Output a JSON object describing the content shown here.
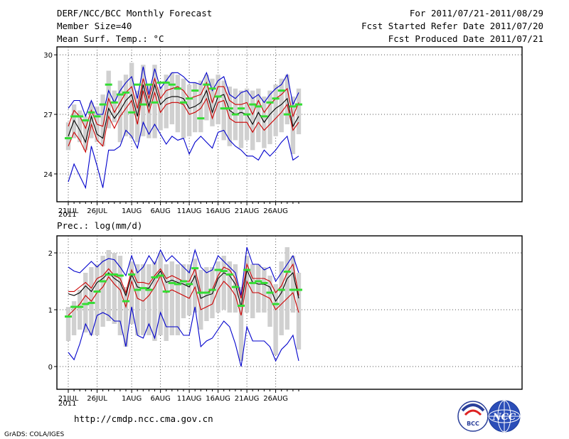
{
  "header": {
    "title": "DERF/NCC/BCC Monthly Forecast",
    "member_size": "Member Size=40",
    "variable": "Mean Surf. Temp.: °C",
    "period": "For 2011/07/21-2011/08/29",
    "started": "Fcst Started Refer Date 2011/07/20",
    "produced": "Fcst Produced Date 2011/07/21"
  },
  "footer": {
    "url": "http://cmdp.ncc.cma.gov.cn",
    "credit": "GrADS: COLA/IGES",
    "logo_left": "BCC",
    "logo_right": "NCC"
  },
  "colors": {
    "blue": "#0000cc",
    "red": "#cc0000",
    "black": "#000000",
    "green": "#33dd33",
    "bar": "#d0d0d0"
  },
  "chart_data": [
    {
      "type": "line",
      "title": "Mean Surf. Temp.: °C",
      "xlabel": "",
      "ylabel": "",
      "ylim": [
        22.6,
        30.4
      ],
      "yticks": [
        24,
        27,
        30
      ],
      "x_start_day": 21,
      "xtick_labels": [
        "21JUL",
        "26JUL",
        "1AUG",
        "6AUG",
        "11AUG",
        "16AUG",
        "21AUG",
        "26AUG"
      ],
      "xtick_index": [
        0,
        5,
        11,
        16,
        21,
        26,
        31,
        36
      ],
      "year_label": "2011",
      "series": [
        {
          "name": "max",
          "color": "#0000cc",
          "values": [
            27.3,
            27.7,
            27.7,
            26.9,
            27.7,
            27.0,
            27.0,
            28.2,
            27.6,
            28.2,
            28.6,
            28.9,
            27.8,
            29.4,
            28.0,
            29.3,
            28.3,
            28.7,
            29.1,
            29.1,
            28.9,
            28.6,
            28.6,
            28.5,
            29.1,
            28.2,
            28.7,
            28.9,
            28.0,
            27.8,
            28.1,
            28.2,
            27.8,
            28.0,
            27.6,
            28.0,
            28.3,
            28.5,
            29.0,
            27.5,
            28.1
          ]
        },
        {
          "name": "upper",
          "color": "#cc0000",
          "values": [
            26.4,
            27.2,
            26.9,
            26.3,
            27.2,
            26.5,
            26.4,
            27.8,
            27.1,
            27.6,
            28.1,
            28.4,
            27.3,
            28.8,
            27.8,
            28.8,
            27.8,
            28.2,
            28.3,
            28.4,
            28.2,
            27.8,
            27.9,
            28.0,
            28.6,
            27.6,
            28.4,
            28.4,
            27.7,
            27.5,
            27.5,
            27.6,
            27.0,
            27.7,
            27.1,
            27.5,
            27.8,
            28.0,
            28.3,
            26.9,
            27.6
          ]
        },
        {
          "name": "mean",
          "color": "#000000",
          "values": [
            25.9,
            26.7,
            26.2,
            25.6,
            26.9,
            26.0,
            25.8,
            27.3,
            26.8,
            27.2,
            27.7,
            28.0,
            26.9,
            28.5,
            27.4,
            28.5,
            27.5,
            27.8,
            27.9,
            27.9,
            27.8,
            27.3,
            27.4,
            27.6,
            28.2,
            27.1,
            27.9,
            28.0,
            27.2,
            27.0,
            27.1,
            27.0,
            26.5,
            27.1,
            26.6,
            27.0,
            27.3,
            27.5,
            27.8,
            26.4,
            26.9
          ]
        },
        {
          "name": "lower",
          "color": "#cc0000",
          "values": [
            25.4,
            26.1,
            25.7,
            25.1,
            26.5,
            25.7,
            25.4,
            26.9,
            26.3,
            26.9,
            27.3,
            27.7,
            26.5,
            28.2,
            27.1,
            28.1,
            27.1,
            27.5,
            27.6,
            27.6,
            27.5,
            27.0,
            27.1,
            27.3,
            27.8,
            26.8,
            27.6,
            27.7,
            26.8,
            26.6,
            26.6,
            26.6,
            26.1,
            26.6,
            26.2,
            26.5,
            26.8,
            27.1,
            27.5,
            26.2,
            26.6
          ]
        },
        {
          "name": "min",
          "color": "#0000cc",
          "values": [
            23.6,
            24.5,
            23.9,
            23.3,
            25.4,
            24.4,
            23.3,
            25.2,
            25.2,
            25.4,
            26.2,
            25.9,
            25.3,
            26.6,
            26.0,
            26.5,
            26.0,
            25.5,
            25.9,
            25.7,
            25.8,
            25.0,
            25.6,
            25.9,
            25.6,
            25.3,
            26.1,
            26.2,
            25.7,
            25.4,
            25.2,
            24.9,
            24.9,
            24.7,
            25.2,
            24.9,
            25.2,
            25.6,
            25.9,
            24.7,
            24.9
          ]
        }
      ],
      "obs": [
        25.8,
        26.9,
        26.9,
        26.7,
        27.1,
        26.9,
        27.5,
        28.5,
        27.6,
        28.0,
        28.1,
        27.1,
        28.5,
        27.5,
        28.5,
        27.6,
        28.6,
        28.6,
        28.5,
        28.3,
        27.6,
        27.8,
        28.2,
        26.8,
        28.5,
        28.3,
        27.9,
        27.3,
        27.3,
        27.0,
        27.3,
        27.0,
        27.5,
        27.4,
        26.9,
        27.6,
        27.8,
        28.2,
        27.0,
        27.4,
        27.5
      ],
      "box_low": [
        25.2,
        25.8,
        25.6,
        25.2,
        25.8,
        25.6,
        25.4,
        26.3,
        26.6,
        25.6,
        25.9,
        25.8,
        25.6,
        25.9,
        25.8,
        25.8,
        26.2,
        26.3,
        26.5,
        26.1,
        25.8,
        25.9,
        26.1,
        26.1,
        26.7,
        26.4,
        26.5,
        25.7,
        25.4,
        25.7,
        25.3,
        25.7,
        25.2,
        25.6,
        25.3,
        25.5,
        25.9,
        26.1,
        26.5,
        25.0,
        26.0
      ],
      "box_high": [
        26.6,
        27.5,
        27.2,
        26.9,
        27.6,
        27.4,
        28.0,
        29.2,
        28.2,
        28.7,
        29.0,
        29.6,
        28.2,
        29.5,
        28.5,
        29.5,
        28.4,
        29.0,
        29.1,
        29.0,
        28.8,
        28.5,
        28.6,
        28.7,
        29.0,
        28.8,
        29.0,
        28.7,
        28.4,
        28.3,
        28.2,
        28.3,
        28.2,
        28.3,
        27.9,
        28.2,
        28.5,
        28.8,
        29.0,
        27.9,
        28.3
      ]
    },
    {
      "type": "line",
      "title": "Prec.: log(mm/d)",
      "xlabel": "",
      "ylabel": "",
      "ylim": [
        -0.4,
        2.3
      ],
      "yticks": [
        0,
        1,
        2
      ],
      "x_start_day": 21,
      "xtick_labels": [
        "21JUL",
        "26JUL",
        "1AUG",
        "6AUG",
        "11AUG",
        "16AUG",
        "21AUG",
        "26AUG"
      ],
      "xtick_index": [
        0,
        5,
        11,
        16,
        21,
        26,
        31,
        36
      ],
      "year_label": "2011",
      "series": [
        {
          "name": "max",
          "color": "#0000cc",
          "values": [
            1.75,
            1.68,
            1.65,
            1.75,
            1.85,
            1.75,
            1.85,
            1.9,
            1.88,
            1.75,
            1.6,
            1.95,
            1.65,
            1.75,
            1.95,
            1.8,
            2.05,
            1.85,
            1.95,
            1.85,
            1.75,
            1.65,
            2.05,
            1.75,
            1.65,
            1.7,
            1.95,
            1.85,
            1.75,
            1.65,
            1.25,
            2.1,
            1.8,
            1.8,
            1.7,
            1.75,
            1.5,
            1.65,
            1.8,
            1.95,
            1.65
          ]
        },
        {
          "name": "upper",
          "color": "#cc0000",
          "values": [
            1.32,
            1.32,
            1.4,
            1.48,
            1.38,
            1.55,
            1.6,
            1.72,
            1.6,
            1.55,
            1.3,
            1.7,
            1.48,
            1.48,
            1.45,
            1.6,
            1.72,
            1.55,
            1.6,
            1.55,
            1.5,
            1.5,
            1.72,
            1.3,
            1.3,
            1.35,
            1.6,
            1.75,
            1.7,
            1.55,
            1.2,
            1.8,
            1.55,
            1.55,
            1.55,
            1.5,
            1.3,
            1.42,
            1.65,
            1.8,
            1.25
          ]
        },
        {
          "name": "mean",
          "color": "#000000",
          "values": [
            1.28,
            1.25,
            1.3,
            1.42,
            1.32,
            1.48,
            1.55,
            1.65,
            1.55,
            1.48,
            1.25,
            1.62,
            1.4,
            1.38,
            1.38,
            1.55,
            1.68,
            1.48,
            1.52,
            1.48,
            1.45,
            1.4,
            1.6,
            1.2,
            1.25,
            1.28,
            1.55,
            1.65,
            1.6,
            1.45,
            1.05,
            1.7,
            1.48,
            1.45,
            1.45,
            1.4,
            1.15,
            1.3,
            1.55,
            1.65,
            1.2
          ]
        },
        {
          "name": "lower",
          "color": "#cc0000",
          "values": [
            0.9,
            1.0,
            1.1,
            1.25,
            1.15,
            1.3,
            1.4,
            1.58,
            1.45,
            1.35,
            1.05,
            1.5,
            1.2,
            1.15,
            1.25,
            1.4,
            1.6,
            1.3,
            1.35,
            1.3,
            1.25,
            1.2,
            1.4,
            1.0,
            1.05,
            1.1,
            1.35,
            1.5,
            1.4,
            1.25,
            0.9,
            1.5,
            1.3,
            1.3,
            1.25,
            1.2,
            1.0,
            1.1,
            1.2,
            1.3,
            0.95
          ]
        },
        {
          "name": "min",
          "color": "#0000cc",
          "values": [
            0.25,
            0.12,
            0.4,
            0.75,
            0.55,
            0.9,
            0.95,
            0.9,
            0.8,
            0.8,
            0.35,
            1.05,
            0.55,
            0.5,
            0.75,
            0.5,
            0.95,
            0.7,
            0.7,
            0.7,
            0.55,
            0.55,
            1.05,
            0.35,
            0.45,
            0.5,
            0.65,
            0.8,
            0.7,
            0.4,
            0.0,
            0.7,
            0.45,
            0.45,
            0.45,
            0.35,
            0.1,
            0.3,
            0.4,
            0.55,
            0.1
          ]
        }
      ],
      "obs": [
        0.88,
        1.05,
        1.05,
        1.1,
        1.12,
        1.32,
        1.5,
        1.62,
        1.62,
        1.6,
        1.15,
        1.62,
        1.35,
        1.38,
        1.35,
        1.57,
        1.6,
        1.32,
        1.47,
        1.45,
        1.5,
        1.45,
        1.73,
        1.3,
        1.3,
        1.35,
        1.7,
        1.68,
        1.62,
        1.4,
        1.07,
        1.7,
        1.47,
        1.5,
        1.47,
        1.3,
        1.1,
        1.35,
        1.67,
        1.35,
        1.35
      ],
      "box_low": [
        0.45,
        0.55,
        0.65,
        0.6,
        0.55,
        0.55,
        0.7,
        0.8,
        0.75,
        0.55,
        0.35,
        0.75,
        0.55,
        0.55,
        0.55,
        0.45,
        0.55,
        0.45,
        0.55,
        0.55,
        0.85,
        0.9,
        0.95,
        0.65,
        0.8,
        0.85,
        0.95,
        1.0,
        0.95,
        0.95,
        0.1,
        0.95,
        0.85,
        0.95,
        0.95,
        0.7,
        0.2,
        0.55,
        0.65,
        0.95,
        0.3
      ],
      "box_high": [
        1.05,
        1.15,
        1.35,
        1.65,
        1.75,
        1.8,
        1.95,
        2.05,
        2.0,
        1.95,
        1.4,
        1.85,
        1.8,
        1.8,
        1.8,
        1.85,
        2.0,
        1.8,
        1.85,
        1.8,
        1.8,
        1.8,
        1.9,
        1.7,
        1.75,
        1.75,
        1.85,
        1.95,
        1.85,
        1.8,
        1.4,
        1.95,
        1.8,
        1.8,
        1.75,
        1.6,
        1.45,
        1.85,
        2.1,
        1.95,
        1.65
      ]
    }
  ]
}
